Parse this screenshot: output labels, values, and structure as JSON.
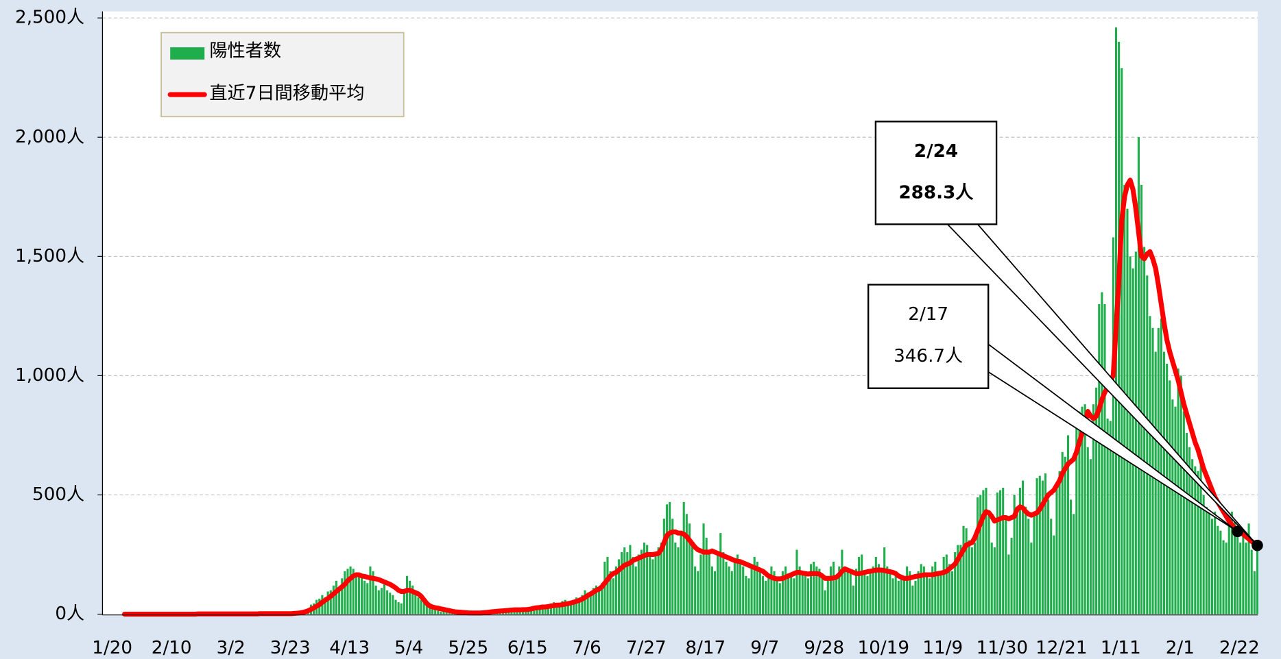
{
  "chart_data": {
    "type": "bar+line",
    "categories": [
      "1/20",
      null,
      null,
      null,
      null,
      null,
      null,
      null,
      null,
      null,
      null,
      null,
      null,
      null,
      null,
      null,
      null,
      null,
      null,
      null,
      null,
      "2/10",
      null,
      null,
      null,
      null,
      null,
      null,
      null,
      null,
      null,
      null,
      null,
      null,
      null,
      null,
      null,
      null,
      null,
      null,
      null,
      null,
      "3/2",
      null,
      null,
      null,
      null,
      null,
      null,
      null,
      null,
      null,
      null,
      null,
      null,
      null,
      null,
      null,
      null,
      null,
      null,
      null,
      null,
      "3/23",
      null,
      null,
      null,
      null,
      null,
      null,
      null,
      null,
      null,
      null,
      null,
      null,
      null,
      null,
      null,
      null,
      null,
      null,
      null,
      null,
      "4/13",
      null,
      null,
      null,
      null,
      null,
      null,
      null,
      null,
      null,
      null,
      null,
      null,
      null,
      null,
      null,
      null,
      null,
      null,
      null,
      null,
      "5/4",
      null,
      null,
      null,
      null,
      null,
      null,
      null,
      null,
      null,
      null,
      null,
      null,
      null,
      null,
      null,
      null,
      null,
      null,
      null,
      null,
      "5/25",
      null,
      null,
      null,
      null,
      null,
      null,
      null,
      null,
      null,
      null,
      null,
      null,
      null,
      null,
      null,
      null,
      null,
      null,
      null,
      null,
      "6/15",
      null,
      null,
      null,
      null,
      null,
      null,
      null,
      null,
      null,
      null,
      null,
      null,
      null,
      null,
      null,
      null,
      null,
      null,
      null,
      null,
      "7/6",
      null,
      null,
      null,
      null,
      null,
      null,
      null,
      null,
      null,
      null,
      null,
      null,
      null,
      null,
      null,
      null,
      null,
      null,
      null,
      null,
      "7/27",
      null,
      null,
      null,
      null,
      null,
      null,
      null,
      null,
      null,
      null,
      null,
      null,
      null,
      null,
      null,
      null,
      null,
      null,
      null,
      null,
      "8/17",
      null,
      null,
      null,
      null,
      null,
      null,
      null,
      null,
      null,
      null,
      null,
      null,
      null,
      null,
      null,
      null,
      null,
      null,
      null,
      null,
      "9/7",
      null,
      null,
      null,
      null,
      null,
      null,
      null,
      null,
      null,
      null,
      null,
      null,
      null,
      null,
      null,
      null,
      null,
      null,
      null,
      null,
      "9/28",
      null,
      null,
      null,
      null,
      null,
      null,
      null,
      null,
      null,
      null,
      null,
      null,
      null,
      null,
      null,
      null,
      null,
      null,
      null,
      null,
      "10/19",
      null,
      null,
      null,
      null,
      null,
      null,
      null,
      null,
      null,
      null,
      null,
      null,
      null,
      null,
      null,
      null,
      null,
      null,
      null,
      null,
      "11/9",
      null,
      null,
      null,
      null,
      null,
      null,
      null,
      null,
      null,
      null,
      null,
      null,
      null,
      null,
      null,
      null,
      null,
      null,
      null,
      null,
      "11/30",
      null,
      null,
      null,
      null,
      null,
      null,
      null,
      null,
      null,
      null,
      null,
      null,
      null,
      null,
      null,
      null,
      null,
      null,
      null,
      null,
      "12/21",
      null,
      null,
      null,
      null,
      null,
      null,
      null,
      null,
      null,
      null,
      null,
      null,
      null,
      null,
      null,
      null,
      null,
      null,
      null,
      null,
      "1/11",
      null,
      null,
      null,
      null,
      null,
      null,
      null,
      null,
      null,
      null,
      null,
      null,
      null,
      null,
      null,
      null,
      null,
      null,
      null,
      null,
      "2/1",
      null,
      null,
      null,
      null,
      null,
      null,
      null,
      null,
      null,
      null,
      null,
      null,
      null,
      null,
      null,
      null,
      null,
      null,
      null,
      null,
      "2/22",
      null,
      null
    ],
    "series": [
      {
        "name": "陽性者数",
        "type": "bar",
        "color": "#1fae4b",
        "values": [
          0,
          0,
          0,
          0,
          1,
          0,
          0,
          0,
          0,
          0,
          0,
          0,
          0,
          0,
          0,
          0,
          0,
          1,
          0,
          0,
          0,
          0,
          0,
          0,
          1,
          0,
          0,
          2,
          0,
          1,
          0,
          0,
          0,
          1,
          0,
          0,
          2,
          1,
          0,
          0,
          0,
          1,
          0,
          2,
          1,
          0,
          1,
          3,
          2,
          1,
          2,
          1,
          3,
          2,
          2,
          3,
          1,
          4,
          3,
          2,
          5,
          10,
          8,
          15,
          20,
          18,
          40,
          45,
          60,
          65,
          80,
          70,
          95,
          100,
          120,
          140,
          110,
          150,
          180,
          190,
          200,
          190,
          170,
          160,
          150,
          140,
          130,
          200,
          180,
          120,
          100,
          110,
          130,
          100,
          90,
          80,
          60,
          50,
          45,
          100,
          160,
          140,
          120,
          90,
          70,
          60,
          50,
          40,
          30,
          25,
          20,
          15,
          10,
          12,
          10,
          8,
          5,
          6,
          5,
          4,
          3,
          5,
          2,
          3,
          5,
          8,
          5,
          10,
          8,
          12,
          15,
          14,
          20,
          15,
          12,
          18,
          20,
          22,
          25,
          15,
          16,
          20,
          18,
          22,
          25,
          30,
          35,
          25,
          40,
          35,
          30,
          45,
          50,
          35,
          40,
          55,
          60,
          50,
          45,
          60,
          70,
          55,
          80,
          100,
          90,
          85,
          110,
          120,
          100,
          130,
          220,
          240,
          180,
          150,
          200,
          230,
          260,
          280,
          260,
          290,
          240,
          200,
          250,
          270,
          300,
          290,
          250,
          230,
          260,
          280,
          300,
          400,
          460,
          470,
          400,
          300,
          280,
          350,
          470,
          420,
          380,
          300,
          200,
          180,
          250,
          380,
          320,
          250,
          200,
          180,
          260,
          340,
          260,
          220,
          200,
          180,
          230,
          250,
          220,
          200,
          160,
          150,
          200,
          240,
          220,
          180,
          160,
          140,
          150,
          200,
          180,
          150,
          130,
          180,
          200,
          170,
          160,
          150,
          270,
          200,
          180,
          160,
          150,
          210,
          220,
          200,
          190,
          170,
          100,
          140,
          200,
          220,
          160,
          200,
          270,
          200,
          180,
          170,
          120,
          190,
          240,
          250,
          180,
          160,
          190,
          200,
          240,
          210,
          180,
          280,
          200,
          170,
          150,
          180,
          140,
          160,
          150,
          200,
          180,
          120,
          140,
          180,
          210,
          200,
          160,
          150,
          200,
          220,
          180,
          170,
          240,
          250,
          210,
          180,
          260,
          290,
          290,
          370,
          360,
          310,
          280,
          300,
          490,
          500,
          520,
          530,
          420,
          300,
          280,
          510,
          520,
          530,
          400,
          250,
          320,
          500,
          420,
          530,
          560,
          450,
          400,
          300,
          420,
          570,
          580,
          560,
          590,
          480,
          400,
          330,
          550,
          600,
          680,
          660,
          750,
          480,
          420,
          800,
          850,
          870,
          880,
          700,
          650,
          880,
          950,
          1300,
          1350,
          1300,
          820,
          810,
          1580,
          2460,
          2400,
          2290,
          1800,
          1700,
          1500,
          1450,
          1520,
          2000,
          1800,
          1540,
          1420,
          1250,
          1200,
          1100,
          1200,
          1240,
          1100,
          1050,
          980,
          900,
          870,
          1030,
          1000,
          850,
          760,
          700,
          650,
          620,
          600,
          630,
          500,
          450,
          430,
          400,
          430,
          370,
          350,
          310,
          300,
          400,
          430,
          390,
          330,
          300,
          330,
          300,
          380,
          270,
          180,
          290
        ]
      },
      {
        "name": "直近7日間移動平均",
        "type": "line",
        "color": "#ff0000",
        "values": [
          0,
          0,
          0,
          0,
          0,
          0,
          0,
          0,
          0,
          0,
          0,
          0,
          0,
          0,
          0,
          0,
          0,
          0,
          0,
          0,
          0,
          0,
          0,
          0,
          0,
          0,
          1,
          1,
          1,
          1,
          1,
          1,
          1,
          1,
          1,
          1,
          1,
          1,
          1,
          1,
          1,
          1,
          1,
          1,
          1,
          1,
          1,
          1,
          2,
          2,
          2,
          2,
          2,
          2,
          2,
          2,
          2,
          2,
          2,
          2,
          3,
          4,
          5,
          7,
          10,
          14,
          20,
          26,
          33,
          40,
          50,
          58,
          66,
          75,
          85,
          95,
          105,
          115,
          125,
          140,
          150,
          160,
          165,
          165,
          160,
          158,
          155,
          152,
          150,
          148,
          145,
          140,
          135,
          130,
          125,
          118,
          110,
          100,
          95,
          95,
          100,
          100,
          95,
          90,
          85,
          75,
          60,
          45,
          35,
          30,
          27,
          25,
          22,
          20,
          17,
          15,
          12,
          10,
          9,
          8,
          7,
          6,
          5,
          5,
          5,
          5,
          5,
          6,
          7,
          8,
          10,
          11,
          12,
          13,
          14,
          15,
          16,
          17,
          18,
          18,
          18,
          19,
          19,
          20,
          22,
          25,
          27,
          28,
          30,
          30,
          32,
          34,
          36,
          38,
          38,
          40,
          42,
          44,
          47,
          50,
          54,
          58,
          63,
          70,
          78,
          85,
          92,
          100,
          105,
          115,
          130,
          145,
          160,
          170,
          175,
          185,
          195,
          205,
          210,
          215,
          225,
          230,
          235,
          240,
          245,
          250,
          250,
          250,
          252,
          255,
          270,
          300,
          330,
          340,
          345,
          345,
          340,
          340,
          335,
          325,
          310,
          295,
          280,
          270,
          265,
          260,
          260,
          260,
          265,
          260,
          255,
          250,
          245,
          240,
          235,
          230,
          225,
          222,
          220,
          215,
          210,
          205,
          200,
          195,
          190,
          185,
          180,
          170,
          160,
          155,
          150,
          148,
          148,
          150,
          155,
          160,
          165,
          170,
          175,
          175,
          172,
          170,
          168,
          170,
          170,
          170,
          168,
          160,
          150,
          150,
          150,
          152,
          155,
          165,
          180,
          190,
          185,
          180,
          175,
          170,
          170,
          172,
          175,
          178,
          180,
          182,
          185,
          185,
          185,
          183,
          180,
          178,
          175,
          170,
          160,
          155,
          150,
          150,
          152,
          155,
          158,
          160,
          162,
          165,
          165,
          165,
          165,
          168,
          170,
          172,
          175,
          180,
          190,
          200,
          210,
          230,
          250,
          270,
          290,
          295,
          300,
          320,
          350,
          380,
          410,
          430,
          425,
          410,
          390,
          395,
          400,
          405,
          405,
          400,
          405,
          410,
          440,
          450,
          445,
          430,
          420,
          415,
          420,
          425,
          440,
          460,
          480,
          500,
          510,
          520,
          540,
          560,
          590,
          610,
          630,
          640,
          650,
          680,
          720,
          760,
          800,
          850,
          830,
          820,
          830,
          860,
          900,
          930,
          950,
          980,
          1000,
          1200,
          1400,
          1650,
          1750,
          1800,
          1820,
          1780,
          1700,
          1600,
          1500,
          1490,
          1510,
          1520,
          1490,
          1450,
          1380,
          1300,
          1220,
          1150,
          1100,
          1060,
          1020,
          980,
          930,
          880,
          840,
          800,
          760,
          720,
          690,
          650,
          610,
          580,
          550,
          520,
          490,
          470,
          450,
          430,
          410,
          390,
          375,
          360,
          346.7,
          340,
          335,
          325,
          315,
          305,
          297,
          288.3
        ]
      }
    ],
    "ylim": [
      0,
      2500
    ],
    "yticks": [
      {
        "value": 0,
        "label": "0人"
      },
      {
        "value": 500,
        "label": "500人"
      },
      {
        "value": 1000,
        "label": "1,000人"
      },
      {
        "value": 1500,
        "label": "1,500人"
      },
      {
        "value": 2000,
        "label": "2,000人"
      },
      {
        "value": 2500,
        "label": "2,500人"
      }
    ],
    "grid": true,
    "legend": "upper left",
    "annotations": [
      {
        "date": "2/17",
        "label": "346.7人",
        "index": 394,
        "bold": false
      },
      {
        "date": "2/24",
        "label": "288.3人",
        "index": 401,
        "bold": true
      }
    ]
  }
}
